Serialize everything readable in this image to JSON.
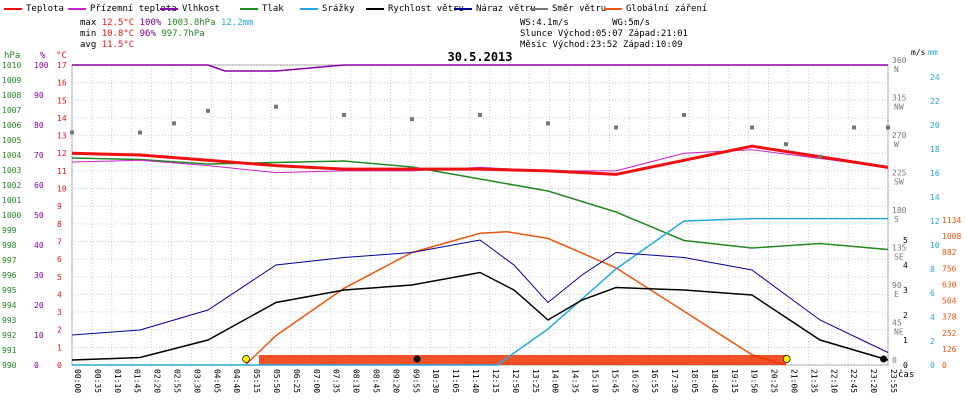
{
  "legend": [
    {
      "label": "Teplota",
      "color": "#ee1111"
    },
    {
      "label": "Přízemní teplota",
      "color": "#cc22cc"
    },
    {
      "label": "Vlhkost",
      "color": "#8800aa"
    },
    {
      "label": "Tlak",
      "color": "#228822"
    },
    {
      "label": "Srážky",
      "color": "#22aadd"
    },
    {
      "label": "Rychlost větru",
      "color": "#000000"
    },
    {
      "label": "Náraz větru",
      "color": "#000099"
    },
    {
      "label": "Směr větru",
      "color": "#777777"
    },
    {
      "label": "Globální záření",
      "color": "#ee5511"
    }
  ],
  "stats": {
    "max": {
      "label": "max",
      "temp": "12.5°C",
      "hum": "100%",
      "press": "1003.8hPa",
      "rain": "12.2mm"
    },
    "min": {
      "label": "min",
      "temp": "10.8°C",
      "hum": "96%",
      "press": "997.7hPa"
    },
    "avg": {
      "label": "avg",
      "temp": "11.5°C"
    }
  },
  "sun": {
    "ws": "WS:4.1m/s",
    "wg": "WG:5m/s",
    "slunce": "Slunce Východ:05:07",
    "slunce_z": "Západ:21:01",
    "mesic": "Měsíc  Východ:23:52",
    "mesic_z": "Západ:10:09"
  },
  "chart_data": {
    "type": "line",
    "title": "30.5.2013",
    "xlabel": "čas",
    "x_ticks": [
      "00:00",
      "00:35",
      "01:10",
      "01:45",
      "02:20",
      "02:55",
      "03:30",
      "04:05",
      "04:40",
      "05:15",
      "05:50",
      "06:25",
      "07:00",
      "07:35",
      "08:10",
      "08:45",
      "09:20",
      "09:55",
      "10:30",
      "11:05",
      "11:40",
      "12:15",
      "12:50",
      "13:25",
      "14:00",
      "14:35",
      "15:10",
      "15:45",
      "16:20",
      "16:55",
      "17:30",
      "18:05",
      "18:40",
      "19:15",
      "19:50",
      "20:25",
      "21:00",
      "21:35",
      "22:10",
      "22:45",
      "23:20",
      "23:55"
    ],
    "axes": {
      "hpa": {
        "label": "hPa",
        "ticks": [
          990,
          991,
          992,
          993,
          994,
          995,
          996,
          997,
          998,
          999,
          1000,
          1001,
          1002,
          1003,
          1004,
          1005,
          1006,
          1007,
          1008,
          1009,
          1010
        ],
        "color": "#228822"
      },
      "pct": {
        "label": "%",
        "ticks": [
          0,
          10,
          20,
          30,
          40,
          50,
          60,
          70,
          80,
          90,
          100
        ],
        "color": "#8800aa"
      },
      "degc": {
        "label": "°C",
        "ticks": [
          0,
          1,
          2,
          3,
          4,
          5,
          6,
          7,
          8,
          9,
          10,
          11,
          12,
          13,
          14,
          15,
          16,
          17
        ],
        "color": "#ee1111"
      },
      "ms": {
        "label": "m/s",
        "ticks": [
          0,
          1,
          2,
          3,
          4,
          5
        ],
        "color": "#000000"
      },
      "dir": {
        "ticks": [
          "0",
          "45 NE",
          "90 E",
          "135 SE",
          "180 S",
          "225 SW",
          "270 W",
          "315 NW",
          "360 N"
        ],
        "color": "#777777"
      },
      "mm": {
        "label": "mm",
        "ticks": [
          0,
          2,
          4,
          6,
          8,
          10,
          12,
          14,
          16,
          18,
          20,
          22,
          24
        ],
        "color": "#22aadd"
      },
      "wm2": {
        "ticks": [
          0,
          126,
          252,
          378,
          504,
          630,
          756,
          882,
          1008,
          1134
        ],
        "color": "#ee5511"
      }
    },
    "series": [
      {
        "name": "Teplota",
        "unit": "°C",
        "x": [
          0,
          2,
          4,
          6,
          8,
          10,
          12,
          14,
          16,
          18,
          20,
          22,
          24
        ],
        "values": [
          12.0,
          11.9,
          11.6,
          11.3,
          11.1,
          11.1,
          11.1,
          11.0,
          10.8,
          11.6,
          12.4,
          11.8,
          11.2
        ]
      },
      {
        "name": "Přízemní teplota",
        "unit": "°C",
        "x": [
          0,
          2,
          4,
          6,
          8,
          10,
          12,
          14,
          16,
          18,
          20,
          22,
          24
        ],
        "values": [
          11.5,
          11.6,
          11.3,
          10.9,
          11.0,
          11.0,
          11.2,
          11.0,
          11.0,
          12.0,
          12.2,
          11.7,
          11.2
        ]
      },
      {
        "name": "Vlhkost",
        "unit": "%",
        "x": [
          0,
          4,
          4.5,
          6,
          8,
          12,
          16,
          24
        ],
        "values": [
          100,
          100,
          98,
          98,
          100,
          100,
          100,
          100
        ]
      },
      {
        "name": "Tlak",
        "unit": "hPa",
        "x": [
          0,
          2,
          4,
          6,
          8,
          10,
          12,
          14,
          16,
          18,
          20,
          22,
          24
        ],
        "values": [
          1003.8,
          1003.7,
          1003.4,
          1003.5,
          1003.6,
          1003.2,
          1002.4,
          1001.6,
          1000.2,
          998.3,
          997.8,
          998.1,
          997.7
        ]
      },
      {
        "name": "Srážky",
        "unit": "mm",
        "x": [
          0,
          12.5,
          13,
          14,
          15,
          16,
          17,
          18,
          20,
          22,
          24
        ],
        "values": [
          0,
          0,
          1,
          3,
          5.5,
          8,
          10,
          12,
          12.2,
          12.2,
          12.2
        ]
      },
      {
        "name": "Rychlost větru",
        "unit": "m/s",
        "x": [
          0,
          2,
          4,
          6,
          8,
          10,
          12,
          13,
          14,
          15,
          16,
          18,
          20,
          22,
          24
        ],
        "values": [
          0.2,
          0.3,
          1.0,
          2.5,
          3.0,
          3.2,
          3.7,
          3.0,
          1.8,
          2.6,
          3.1,
          3.0,
          2.8,
          1.0,
          0.2
        ]
      },
      {
        "name": "Náraz větru",
        "unit": "m/s",
        "x": [
          0,
          2,
          4,
          6,
          8,
          10,
          12,
          13,
          14,
          15,
          16,
          18,
          20,
          22,
          24
        ],
        "values": [
          1.2,
          1.4,
          2.2,
          4.0,
          4.3,
          4.5,
          5.0,
          4.0,
          2.5,
          3.6,
          4.5,
          4.3,
          3.8,
          1.8,
          0.5
        ]
      },
      {
        "name": "Směr větru",
        "unit": "°",
        "x": [
          0,
          2,
          3,
          4,
          6,
          8,
          10,
          12,
          14,
          16,
          18,
          20,
          21,
          22,
          23,
          24
        ],
        "values": [
          279,
          279,
          290,
          305,
          310,
          300,
          295,
          300,
          290,
          285,
          300,
          285,
          265,
          250,
          285,
          285
        ]
      },
      {
        "name": "Globální záření",
        "unit": "W/m2",
        "x": [
          5.1,
          6,
          8,
          10,
          12,
          12.8,
          14,
          16,
          18,
          20,
          21
        ],
        "values": [
          0,
          230,
          600,
          880,
          1030,
          1042,
          990,
          760,
          420,
          80,
          0
        ]
      }
    ]
  }
}
